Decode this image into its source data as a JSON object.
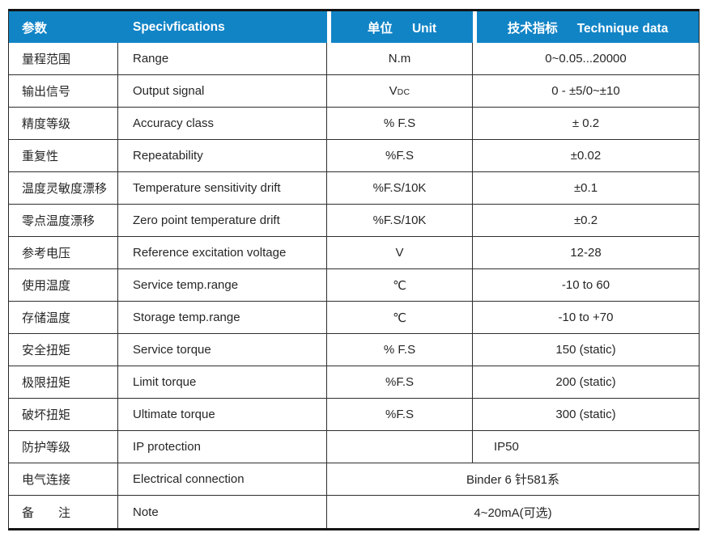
{
  "table": {
    "header": {
      "param_zh": "参数",
      "spec_en": "Specivfications",
      "unit_zh": "单位",
      "unit_en": "Unit",
      "tech_zh": "技术指标",
      "tech_en": "Technique data"
    },
    "rows": [
      {
        "param": "量程范围",
        "spec": "Range",
        "unit": "N.m",
        "value": "0~0.05...20000"
      },
      {
        "param": "输出信号",
        "spec": "Output signal",
        "unit": "V",
        "unit_sub": "DC",
        "value": "0 - ±5/0~±10"
      },
      {
        "param": "精度等级",
        "spec": "Accuracy class",
        "unit": "% F.S",
        "value": "± 0.2"
      },
      {
        "param": "重复性",
        "spec": "Repeatability",
        "unit": "%F.S",
        "value": "±0.02"
      },
      {
        "param": "温度灵敏度漂移",
        "spec": "Temperature sensitivity drift",
        "unit": "%F.S/10K",
        "value": "±0.1"
      },
      {
        "param": "零点温度漂移",
        "spec": "Zero point temperature drift",
        "unit": "%F.S/10K",
        "value": "±0.2"
      },
      {
        "param": "参考电压",
        "spec": "Reference excitation voltage",
        "unit": "V",
        "value": "12-28"
      },
      {
        "param": "使用温度",
        "spec": "Service temp.range",
        "unit": "℃",
        "value": "-10 to 60"
      },
      {
        "param": "存储温度",
        "spec": "Storage temp.range",
        "unit": "℃",
        "value": "-10 to +70"
      },
      {
        "param": "安全扭矩",
        "spec": "Service torque",
        "unit": "% F.S",
        "value": "150 (static)"
      },
      {
        "param": "极限扭矩",
        "spec": "Limit torque",
        "unit": "%F.S",
        "value": "200 (static)"
      },
      {
        "param": "破坏扭矩",
        "spec": "Ultimate torque",
        "unit": "%F.S",
        "value": "300 (static)"
      },
      {
        "param": "防护等级",
        "spec": "IP protection",
        "unit": "",
        "value": "IP50"
      },
      {
        "param": "电气连接",
        "spec": "Electrical connection",
        "merged_value": "Binder 6 针581系"
      },
      {
        "param": "备　　注",
        "spec": "Note",
        "merged_value": "4~20mA(可选)"
      }
    ],
    "colors": {
      "header_bg": "#1184c6",
      "header_text": "#ffffff",
      "border": "#2e2e2e",
      "outer_border": "#141414",
      "body_text": "#262626"
    }
  }
}
